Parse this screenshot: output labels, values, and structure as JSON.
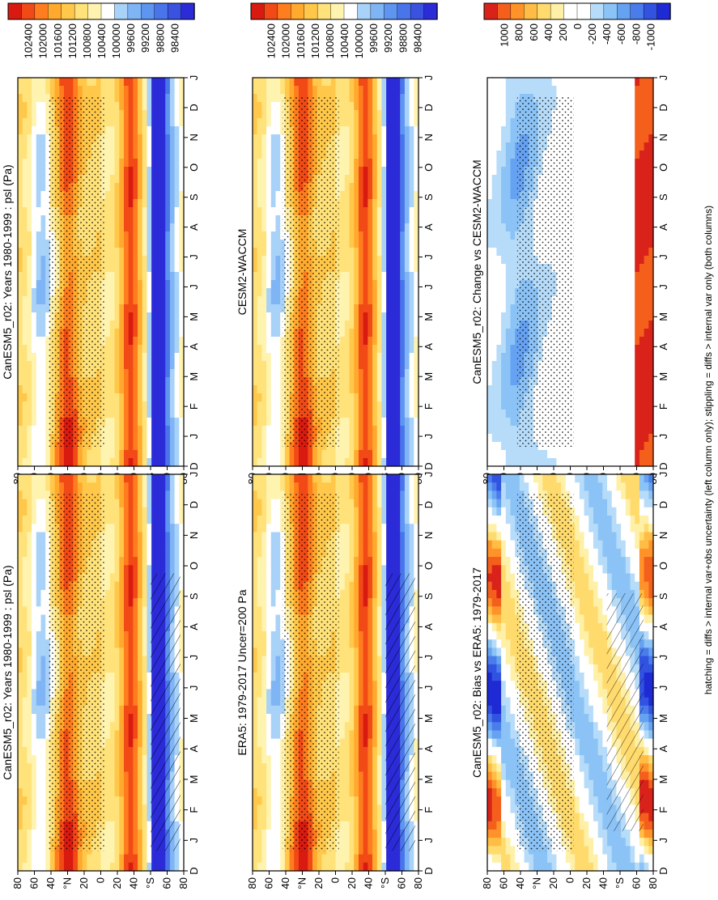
{
  "footer_caption": "hatching = diffs > internal var+obs uncertainty (left column only); stippling = diffs > internal var only (both columns)",
  "month_ticks": [
    "D",
    "J",
    "F",
    "M",
    "A",
    "M",
    "J",
    "J",
    "A",
    "S",
    "O",
    "N",
    "D",
    "J"
  ],
  "lat_ticks": [
    "80",
    "60",
    "40",
    "°N",
    "20",
    "0",
    "20",
    "40",
    "°S",
    "60",
    "80"
  ],
  "palette_abs": [
    "#2b2bd8",
    "#3a52e0",
    "#4a74ea",
    "#5d95f0",
    "#7fb4f5",
    "#a9d2f8",
    "#ffffff",
    "#fff3b0",
    "#ffe27a",
    "#ffc84a",
    "#ffa92e",
    "#ff7d1e",
    "#f24a16",
    "#d81a10"
  ],
  "palette_diff": [
    "#1e2ad4",
    "#3153e0",
    "#4a7cec",
    "#66a2f2",
    "#8cc3f6",
    "#b7dcf9",
    "#ffffff",
    "#ffffff",
    "#fff0a8",
    "#ffdb6e",
    "#ffbd45",
    "#ff932a",
    "#f45f1c",
    "#d9231a"
  ],
  "chart_data": [
    {
      "id": "canesm5-clim",
      "type": "heatmap",
      "title": "CanESM5_r02: Years 1980-1999 : psl (Pa)",
      "xlabel": "",
      "ylabel": "",
      "x": [
        "D",
        "J",
        "F",
        "M",
        "A",
        "M",
        "J",
        "J",
        "A",
        "S",
        "O",
        "N",
        "D",
        "J"
      ],
      "y_range_deg": [
        -90,
        90
      ],
      "colorbar": {
        "labels": [
          "102400",
          "102000",
          "101600",
          "101200",
          "100800",
          "100400",
          "100000",
          "99600",
          "99200",
          "98800",
          "98400"
        ]
      },
      "overlays": [
        "stippling",
        "hatching"
      ]
    },
    {
      "id": "cesm2-clim",
      "type": "heatmap",
      "title": "CanESM5_r02: Years 1980-1999 : psl (Pa)",
      "xlabel": "",
      "ylabel": "",
      "x": [
        "D",
        "J",
        "F",
        "M",
        "A",
        "M",
        "J",
        "J",
        "A",
        "S",
        "O",
        "N",
        "D",
        "J"
      ],
      "y_range_deg": [
        -90,
        90
      ],
      "colorbar": {
        "labels": [
          "102400",
          "102000",
          "101600",
          "101200",
          "100800",
          "100400",
          "100000",
          "99600",
          "99200",
          "98800",
          "98400"
        ]
      },
      "overlays": [
        "stippling"
      ]
    },
    {
      "id": "era5-clim",
      "type": "heatmap",
      "title": "ERA5: 1979-2017 Uncer=200 Pa",
      "xlabel": "",
      "ylabel": "",
      "x": [
        "D",
        "J",
        "F",
        "M",
        "A",
        "M",
        "J",
        "J",
        "A",
        "S",
        "O",
        "N",
        "D",
        "J"
      ],
      "y_range_deg": [
        -90,
        90
      ],
      "colorbar": {
        "labels": [
          "102400",
          "102000",
          "101600",
          "101200",
          "100800",
          "100400",
          "100000",
          "99600",
          "99200",
          "98800",
          "98400"
        ]
      },
      "overlays": [
        "stippling",
        "hatching"
      ]
    },
    {
      "id": "cesm2-waccm",
      "type": "heatmap",
      "title": "CESM2-WACCM",
      "xlabel": "",
      "ylabel": "",
      "x": [
        "D",
        "J",
        "F",
        "M",
        "A",
        "M",
        "J",
        "J",
        "A",
        "S",
        "O",
        "N",
        "D",
        "J"
      ],
      "y_range_deg": [
        -90,
        90
      ],
      "colorbar": {
        "labels": [
          "102400",
          "102000",
          "101600",
          "101200",
          "100800",
          "100400",
          "100000",
          "99600",
          "99200",
          "98800",
          "98400"
        ]
      },
      "overlays": [
        "stippling"
      ]
    },
    {
      "id": "bias-era5",
      "type": "heatmap",
      "title": "CanESM5_r02: Bias vs ERA5: 1979-2017",
      "xlabel": "",
      "ylabel": "",
      "x": [
        "D",
        "J",
        "F",
        "M",
        "A",
        "M",
        "J",
        "J",
        "A",
        "S",
        "O",
        "N",
        "D",
        "J"
      ],
      "y_range_deg": [
        -90,
        90
      ],
      "colorbar": {
        "labels": [
          "1000",
          "800",
          "600",
          "400",
          "200",
          "0",
          "-200",
          "-400",
          "-600",
          "-800",
          "-1000"
        ]
      },
      "overlays": [
        "stippling",
        "hatching"
      ]
    },
    {
      "id": "change-cesm2",
      "type": "heatmap",
      "title": "CanESM5_r02: Change vs CESM2-WACCM",
      "xlabel": "",
      "ylabel": "",
      "x": [
        "D",
        "J",
        "F",
        "M",
        "A",
        "M",
        "J",
        "J",
        "A",
        "S",
        "O",
        "N",
        "D",
        "J"
      ],
      "y_range_deg": [
        -90,
        90
      ],
      "colorbar": {
        "labels": [
          "1000",
          "800",
          "600",
          "400",
          "200",
          "0",
          "-200",
          "-400",
          "-600",
          "-800",
          "-1000"
        ]
      },
      "overlays": [
        "stippling"
      ]
    }
  ]
}
